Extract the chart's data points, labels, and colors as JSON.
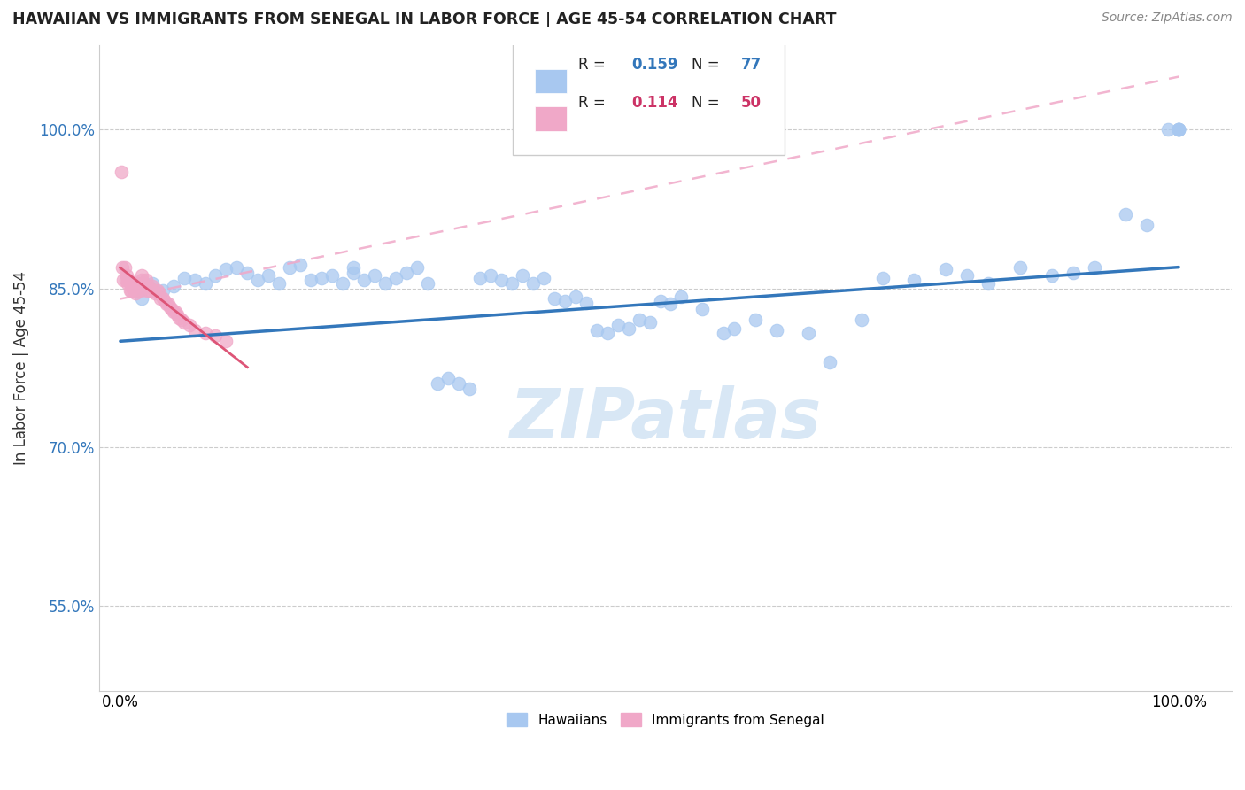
{
  "title": "HAWAIIAN VS IMMIGRANTS FROM SENEGAL IN LABOR FORCE | AGE 45-54 CORRELATION CHART",
  "source": "Source: ZipAtlas.com",
  "ylabel": "In Labor Force | Age 45-54",
  "blue_color": "#a8c8f0",
  "pink_color": "#f0a8c8",
  "trend_blue": "#3377bb",
  "trend_pink_solid": "#dd5577",
  "trend_pink_dash": "#f0a8c8",
  "watermark": "ZIPatlas",
  "legend_r_blue": "0.159",
  "legend_n_blue": "77",
  "legend_r_pink": "0.114",
  "legend_n_pink": "50",
  "hawaiians_x": [
    0.02,
    0.03,
    0.04,
    0.05,
    0.06,
    0.07,
    0.08,
    0.09,
    0.1,
    0.11,
    0.12,
    0.13,
    0.14,
    0.15,
    0.16,
    0.17,
    0.18,
    0.19,
    0.2,
    0.21,
    0.22,
    0.22,
    0.23,
    0.24,
    0.25,
    0.26,
    0.27,
    0.28,
    0.29,
    0.3,
    0.31,
    0.32,
    0.33,
    0.34,
    0.35,
    0.36,
    0.37,
    0.38,
    0.39,
    0.4,
    0.41,
    0.42,
    0.43,
    0.44,
    0.45,
    0.46,
    0.47,
    0.48,
    0.49,
    0.5,
    0.51,
    0.52,
    0.53,
    0.55,
    0.57,
    0.58,
    0.6,
    0.62,
    0.65,
    0.67,
    0.7,
    0.72,
    0.75,
    0.78,
    0.8,
    0.82,
    0.85,
    0.88,
    0.9,
    0.92,
    0.95,
    0.97,
    0.99,
    1.0,
    1.0,
    1.0,
    1.0
  ],
  "hawaiians_y": [
    0.84,
    0.855,
    0.848,
    0.852,
    0.86,
    0.858,
    0.855,
    0.862,
    0.868,
    0.87,
    0.865,
    0.858,
    0.862,
    0.855,
    0.87,
    0.872,
    0.858,
    0.86,
    0.862,
    0.855,
    0.865,
    0.87,
    0.858,
    0.862,
    0.855,
    0.86,
    0.865,
    0.87,
    0.855,
    0.76,
    0.765,
    0.76,
    0.755,
    0.86,
    0.862,
    0.858,
    0.855,
    0.862,
    0.855,
    0.86,
    0.84,
    0.838,
    0.842,
    0.836,
    0.81,
    0.808,
    0.815,
    0.812,
    0.82,
    0.818,
    0.838,
    0.835,
    0.842,
    0.83,
    0.808,
    0.812,
    0.82,
    0.81,
    0.808,
    0.78,
    0.82,
    0.86,
    0.858,
    0.868,
    0.862,
    0.855,
    0.87,
    0.862,
    0.865,
    0.87,
    0.92,
    0.91,
    1.0,
    1.0,
    1.0,
    1.0,
    1.0
  ],
  "senegal_x": [
    0.001,
    0.002,
    0.003,
    0.004,
    0.005,
    0.006,
    0.007,
    0.008,
    0.009,
    0.01,
    0.01,
    0.011,
    0.012,
    0.013,
    0.014,
    0.015,
    0.016,
    0.017,
    0.018,
    0.019,
    0.02,
    0.02,
    0.022,
    0.024,
    0.025,
    0.027,
    0.028,
    0.03,
    0.032,
    0.033,
    0.035,
    0.037,
    0.038,
    0.04,
    0.042,
    0.044,
    0.045,
    0.047,
    0.049,
    0.05,
    0.052,
    0.054,
    0.055,
    0.058,
    0.06,
    0.065,
    0.07,
    0.08,
    0.09,
    0.1
  ],
  "senegal_y": [
    0.96,
    0.87,
    0.858,
    0.87,
    0.858,
    0.862,
    0.855,
    0.858,
    0.848,
    0.852,
    0.848,
    0.855,
    0.85,
    0.848,
    0.845,
    0.852,
    0.848,
    0.855,
    0.85,
    0.848,
    0.858,
    0.862,
    0.855,
    0.858,
    0.848,
    0.852,
    0.848,
    0.852,
    0.848,
    0.845,
    0.848,
    0.845,
    0.84,
    0.84,
    0.838,
    0.835,
    0.835,
    0.832,
    0.83,
    0.828,
    0.828,
    0.825,
    0.822,
    0.82,
    0.818,
    0.815,
    0.81,
    0.808,
    0.805,
    0.8
  ],
  "blue_trend_x": [
    0.0,
    1.0
  ],
  "blue_trend_y": [
    0.8,
    0.87
  ],
  "pink_trend_x": [
    0.0,
    1.0
  ],
  "pink_trend_y": [
    0.84,
    1.05
  ],
  "yticks": [
    0.55,
    0.7,
    0.85,
    1.0
  ],
  "ytick_labels": [
    "55.0%",
    "70.0%",
    "85.0%",
    "100.0%"
  ],
  "xlim": [
    -0.02,
    1.05
  ],
  "ylim": [
    0.47,
    1.08
  ]
}
